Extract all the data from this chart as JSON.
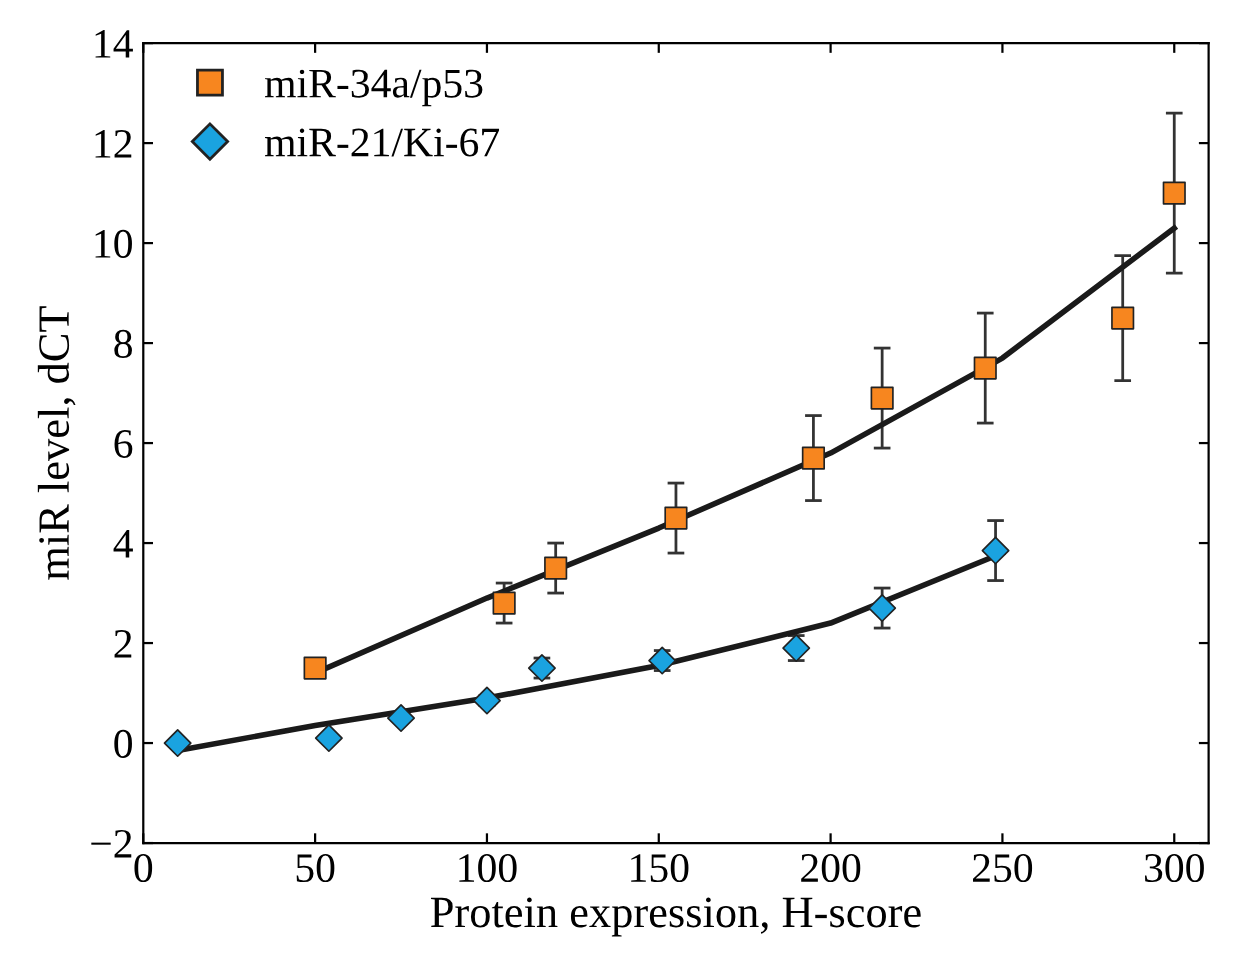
{
  "chart_data": {
    "type": "scatter",
    "xlabel": "Protein expression, H-score",
    "ylabel": "miR level, dCT",
    "xlim": [
      0,
      310
    ],
    "ylim": [
      -2,
      14
    ],
    "xticks": [
      0,
      50,
      100,
      150,
      200,
      250,
      300
    ],
    "yticks": [
      {
        "value": -2,
        "label": "−2"
      },
      0,
      2,
      4,
      6,
      8,
      10,
      12,
      14
    ],
    "grid": false,
    "legend": "top left",
    "series": [
      {
        "name": "miR-34a/p53",
        "color": "#f7861f",
        "marker": "square",
        "x": [
          50,
          105,
          120,
          155,
          195,
          215,
          245,
          285,
          300
        ],
        "values": [
          1.5,
          2.8,
          3.5,
          4.5,
          5.7,
          6.9,
          7.5,
          8.5,
          11
        ],
        "errors": [
          null,
          0.4,
          0.5,
          0.7,
          0.85,
          1.0,
          1.1,
          1.25,
          1.6
        ]
      },
      {
        "name": "miR-21/Ki-67",
        "color": "#1aa3e0",
        "marker": "diamond",
        "x": [
          10,
          54,
          75,
          100,
          116,
          151,
          190,
          215,
          248
        ],
        "values": [
          0,
          0.1,
          0.5,
          0.85,
          1.5,
          1.65,
          1.9,
          2.7,
          3.85
        ],
        "errors": [
          null,
          null,
          null,
          0.1,
          0.2,
          0.2,
          0.25,
          0.4,
          0.6
        ]
      },
      {
        "type": "line",
        "color": "#1a1a1a",
        "marker": "none",
        "x": [
          50,
          100,
          150,
          200,
          250,
          300
        ],
        "values": [
          1.4,
          2.9,
          4.3,
          5.8,
          7.7,
          10.3
        ]
      },
      {
        "type": "line",
        "color": "#1a1a1a",
        "marker": "none",
        "x": [
          10,
          50,
          100,
          150,
          200,
          250
        ],
        "values": [
          -0.15,
          0.35,
          0.9,
          1.55,
          2.4,
          3.8
        ]
      }
    ]
  }
}
